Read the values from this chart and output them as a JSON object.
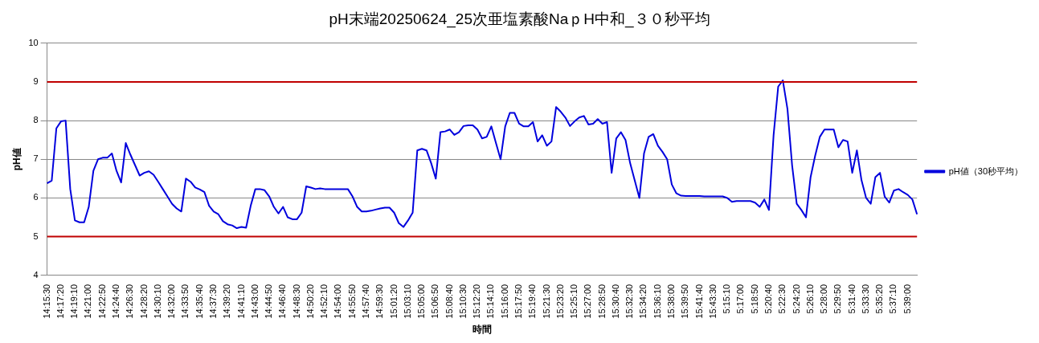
{
  "chart_data": {
    "type": "line",
    "title": "pH末端20250624_25次亜塩素酸NaｐH中和_３０秒平均",
    "xlabel": "時間",
    "ylabel": "pH値",
    "categories": [
      "14:15:30",
      null,
      null,
      "14:17:20",
      null,
      null,
      "14:19:10",
      null,
      null,
      "14:21:00",
      null,
      null,
      "14:22:50",
      null,
      null,
      "14:24:40",
      null,
      null,
      "14:26:30",
      null,
      null,
      "14:28:20",
      null,
      null,
      "14:30:10",
      null,
      null,
      "14:32:00",
      null,
      null,
      "14:33:50",
      null,
      null,
      "14:35:40",
      null,
      null,
      "14:37:30",
      null,
      null,
      "14:39:20",
      null,
      null,
      "14:41:10",
      null,
      null,
      "14:43:00",
      null,
      null,
      "14:44:50",
      null,
      null,
      "14:46:40",
      null,
      null,
      "14:48:30",
      null,
      null,
      "14:50:20",
      null,
      null,
      "14:52:10",
      null,
      null,
      "14:54:00",
      null,
      null,
      "14:55:50",
      null,
      null,
      "14:57:40",
      null,
      null,
      "14:59:30",
      null,
      null,
      "15:01:20",
      null,
      null,
      "15:03:10",
      null,
      null,
      "15:05:00",
      null,
      null,
      "15:06:50",
      null,
      null,
      "15:08:40",
      null,
      null,
      "15:10:30",
      null,
      null,
      "15:12:20",
      null,
      null,
      "15:14:10",
      null,
      null,
      "15:16:00",
      null,
      null,
      "15:17:50",
      null,
      null,
      "15:19:40",
      null,
      null,
      "15:21:30",
      null,
      null,
      "15:23:20",
      null,
      null,
      "15:25:10",
      null,
      null,
      "15:27:00",
      null,
      null,
      "15:28:50",
      null,
      null,
      "15:30:40",
      null,
      null,
      "15:32:30",
      null,
      null,
      "15:34:20",
      null,
      null,
      "15:36:10",
      null,
      null,
      "15:38:00",
      null,
      null,
      "15:39:50",
      null,
      null,
      "15:41:40",
      null,
      null,
      "15:43:30",
      null,
      null,
      "5:15:10",
      null,
      null,
      "5:17:00",
      null,
      null,
      "5:18:50",
      null,
      null,
      "5:20:40",
      null,
      null,
      "5:22:30",
      null,
      null,
      "5:24:20",
      null,
      null,
      "5:26:10",
      null,
      null,
      "5:28:00",
      null,
      null,
      "5:29:50",
      null,
      null,
      "5:31:40",
      null,
      null,
      "5:33:30",
      null,
      null,
      "5:35:20",
      null,
      null,
      "5:37:10",
      null,
      null,
      "5:39:00",
      null,
      null
    ],
    "series": [
      {
        "name": "pH値（30秒平均）",
        "color": "#0000dd",
        "values": [
          6.38,
          6.45,
          7.8,
          7.98,
          8.0,
          6.23,
          5.42,
          5.37,
          5.37,
          5.77,
          6.7,
          7.0,
          7.04,
          7.04,
          7.15,
          6.7,
          6.4,
          7.42,
          7.12,
          6.85,
          6.58,
          6.65,
          6.69,
          6.6,
          6.42,
          6.23,
          6.04,
          5.85,
          5.73,
          5.65,
          6.5,
          6.42,
          6.27,
          6.22,
          6.15,
          5.8,
          5.65,
          5.58,
          5.4,
          5.32,
          5.29,
          5.22,
          5.25,
          5.23,
          5.8,
          6.23,
          6.23,
          6.2,
          6.04,
          5.77,
          5.6,
          5.77,
          5.5,
          5.45,
          5.45,
          5.62,
          6.3,
          6.27,
          6.23,
          6.25,
          6.23,
          6.23,
          6.23,
          6.23,
          6.23,
          6.23,
          6.04,
          5.77,
          5.65,
          5.65,
          5.67,
          5.7,
          5.73,
          5.75,
          5.75,
          5.62,
          5.35,
          5.25,
          5.42,
          5.62,
          7.23,
          7.27,
          7.23,
          6.9,
          6.5,
          7.7,
          7.72,
          7.77,
          7.63,
          7.7,
          7.86,
          7.88,
          7.88,
          7.77,
          7.54,
          7.58,
          7.85,
          7.42,
          7.0,
          7.85,
          8.2,
          8.2,
          7.92,
          7.85,
          7.85,
          7.96,
          7.46,
          7.62,
          7.35,
          7.46,
          8.35,
          8.23,
          8.08,
          7.86,
          7.98,
          8.08,
          8.12,
          7.9,
          7.92,
          8.04,
          7.92,
          7.96,
          6.65,
          7.54,
          7.7,
          7.5,
          6.9,
          6.45,
          6.0,
          7.15,
          7.58,
          7.65,
          7.35,
          7.19,
          7.0,
          6.35,
          6.12,
          6.06,
          6.05,
          6.05,
          6.05,
          6.05,
          6.04,
          6.04,
          6.04,
          6.04,
          6.04,
          6.0,
          5.9,
          5.92,
          5.92,
          5.92,
          5.92,
          5.88,
          5.77,
          5.96,
          5.69,
          7.62,
          8.88,
          9.04,
          8.3,
          6.85,
          5.85,
          5.69,
          5.5,
          6.54,
          7.1,
          7.58,
          7.77,
          7.77,
          7.77,
          7.31,
          7.5,
          7.46,
          6.65,
          7.23,
          6.46,
          6.0,
          5.85,
          6.54,
          6.65,
          6.04,
          5.88,
          6.19,
          6.23,
          6.15,
          6.08,
          5.96,
          5.58
        ]
      }
    ],
    "ylim": [
      4,
      10
    ],
    "yticks": [
      4,
      5,
      6,
      7,
      8,
      9,
      10
    ],
    "grid": "y",
    "legend": "right",
    "marker": "none",
    "line_style": "solid",
    "ref_lines": [
      {
        "axis": "y",
        "value": 9,
        "color": "#c00000"
      },
      {
        "axis": "y",
        "value": 5,
        "color": "#c00000"
      }
    ]
  }
}
